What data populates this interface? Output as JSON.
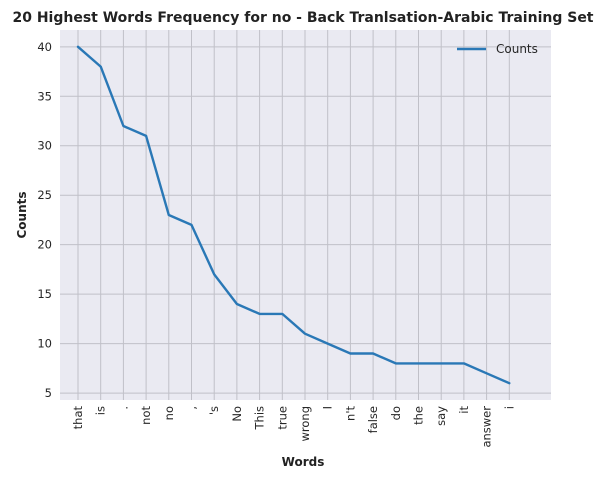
{
  "chart_data": {
    "type": "line",
    "title": "20 Highest Words Frequency for no - Back Tranlsation-Arabic Training Set",
    "xlabel": "Words",
    "ylabel": "Counts",
    "categories": [
      "that",
      "is",
      ".",
      "not",
      "no",
      ",",
      "'s",
      "No",
      "This",
      "true",
      "wrong",
      "I",
      "n't",
      "false",
      "do",
      "the",
      "say",
      "it",
      "answer",
      "i"
    ],
    "series": [
      {
        "name": "Counts",
        "values": [
          40,
          38,
          32,
          31,
          23,
          22,
          17,
          14,
          13,
          13,
          11,
          10,
          9,
          9,
          8,
          8,
          8,
          8,
          7,
          6
        ]
      }
    ],
    "ylim": [
      4.3,
      41.7
    ],
    "yticks": [
      5,
      10,
      15,
      20,
      25,
      30,
      35,
      40
    ],
    "grid": true,
    "legend_position": "top-right",
    "colors": {
      "line": "#2a78b6",
      "plot_background": "#eaeaf2",
      "grid": "#c0c0c8"
    }
  }
}
